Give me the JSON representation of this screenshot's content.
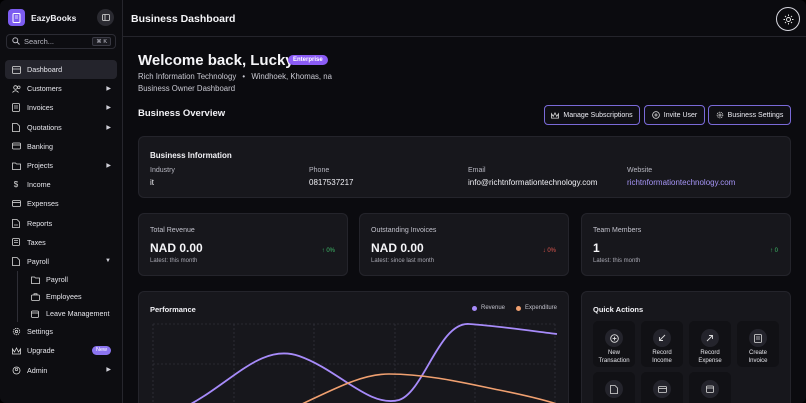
{
  "app": {
    "name": "EazyBooks",
    "toggle_icon": "sidebar-toggle-icon"
  },
  "search": {
    "placeholder": "Search...",
    "shortcut": "⌘ K"
  },
  "sidebar": {
    "items": [
      {
        "label": "Dashboard",
        "icon": "dashboard-icon",
        "active": true
      },
      {
        "label": "Customers",
        "icon": "users-icon",
        "chevron": "▶"
      },
      {
        "label": "Invoices",
        "icon": "invoice-icon",
        "chevron": "▶"
      },
      {
        "label": "Quotations",
        "icon": "quote-icon",
        "chevron": "▶"
      },
      {
        "label": "Banking",
        "icon": "bank-icon"
      },
      {
        "label": "Projects",
        "icon": "folder-icon",
        "chevron": "▶"
      },
      {
        "label": "Income",
        "icon": "dollar-icon"
      },
      {
        "label": "Expenses",
        "icon": "expenses-icon"
      },
      {
        "label": "Reports",
        "icon": "reports-icon"
      },
      {
        "label": "Taxes",
        "icon": "taxes-icon"
      },
      {
        "label": "Payroll",
        "icon": "payroll-icon",
        "chevron": "▼"
      }
    ],
    "payroll_sub": [
      {
        "label": "Payroll",
        "icon": "folder-icon"
      },
      {
        "label": "Employees",
        "icon": "briefcase-icon"
      },
      {
        "label": "Leave Management",
        "icon": "calendar-icon"
      }
    ],
    "bottom": [
      {
        "label": "Settings",
        "icon": "gear-icon"
      },
      {
        "label": "Upgrade",
        "icon": "crown-icon",
        "badge": "New"
      },
      {
        "label": "Admin",
        "icon": "admin-icon",
        "chevron": "▶"
      }
    ]
  },
  "header": {
    "title": "Business Dashboard",
    "theme_icon": "sun-icon"
  },
  "welcome": {
    "title": "Welcome back, Lucky",
    "tier": "Enterprise",
    "company": "Rich Information Technology",
    "separator": "•",
    "location": "Windhoek, Khomas, na",
    "role": "Business Owner Dashboard"
  },
  "overview": {
    "title": "Business Overview",
    "buttons": {
      "manage": "Manage Subscriptions",
      "invite": "Invite User",
      "settings": "Business Settings"
    }
  },
  "business_info": {
    "title": "Business Information",
    "industry_label": "Industry",
    "industry": "it",
    "phone_label": "Phone",
    "phone": "0817537217",
    "email_label": "Email",
    "email": "info@richtnformationtechnology.com",
    "website_label": "Website",
    "website": "richtnformationtechnology.com"
  },
  "stats": [
    {
      "label": "Total Revenue",
      "value": "NAD 0.00",
      "sub": "Latest: this month",
      "trend": "↑ 0%",
      "direction": "up"
    },
    {
      "label": "Outstanding Invoices",
      "value": "NAD 0.00",
      "sub": "Latest: since last month",
      "trend": "↓ 0%",
      "direction": "down"
    },
    {
      "label": "Team Members",
      "value": "1",
      "sub": "Latest: this month",
      "trend": "↑ 0",
      "direction": "up"
    }
  ],
  "performance": {
    "title": "Performance",
    "colors": {
      "revenue": "#a78bfa",
      "expenditure": "#f0a070"
    },
    "legend": {
      "revenue": "Revenue",
      "expenditure": "Expenditure"
    }
  },
  "quick_actions": {
    "title": "Quick Actions",
    "tiles": [
      {
        "line1": "New",
        "line2": "Transaction",
        "icon": "plus-circle-icon"
      },
      {
        "line1": "Record",
        "line2": "Income",
        "icon": "arrow-down-left-icon"
      },
      {
        "line1": "Record",
        "line2": "Expense",
        "icon": "arrow-up-right-icon"
      },
      {
        "line1": "Create",
        "line2": "Invoice",
        "icon": "invoice-icon"
      },
      {
        "line1": "",
        "line2": "",
        "icon": "document-icon"
      },
      {
        "line1": "",
        "line2": "",
        "icon": "card-icon"
      },
      {
        "line1": "",
        "line2": "",
        "icon": "calendar-icon"
      }
    ]
  }
}
